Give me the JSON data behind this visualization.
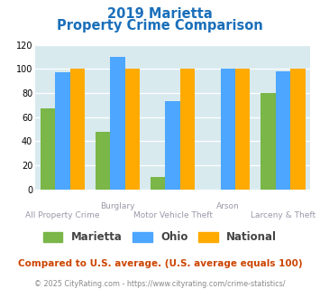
{
  "title_line1": "2019 Marietta",
  "title_line2": "Property Crime Comparison",
  "title_color": "#1a6fba",
  "categories": [
    "All Property Crime",
    "Burglary",
    "Motor Vehicle Theft",
    "Arson",
    "Larceny & Theft"
  ],
  "marietta": [
    67,
    48,
    10,
    0,
    80
  ],
  "ohio": [
    97,
    110,
    73,
    100,
    98
  ],
  "national": [
    100,
    100,
    100,
    100,
    100
  ],
  "marietta_color": "#7ab648",
  "ohio_color": "#4da6ff",
  "national_color": "#ffaa00",
  "ylim": [
    0,
    120
  ],
  "yticks": [
    0,
    20,
    40,
    60,
    80,
    100,
    120
  ],
  "bg_color": "#d8eaee",
  "bar_width": 0.27,
  "footnote": "Compared to U.S. average. (U.S. average equals 100)",
  "footnote2": "© 2025 CityRating.com - https://www.cityrating.com/crime-statistics/",
  "footnote_color": "#cc4400",
  "footnote2_color": "#888888",
  "label_color": "#9999aa",
  "top_labels": {
    "1": "Burglary",
    "3": "Arson"
  },
  "bottom_labels": {
    "0": "All Property Crime",
    "2": "Motor Vehicle Theft",
    "4": "Larceny & Theft"
  }
}
